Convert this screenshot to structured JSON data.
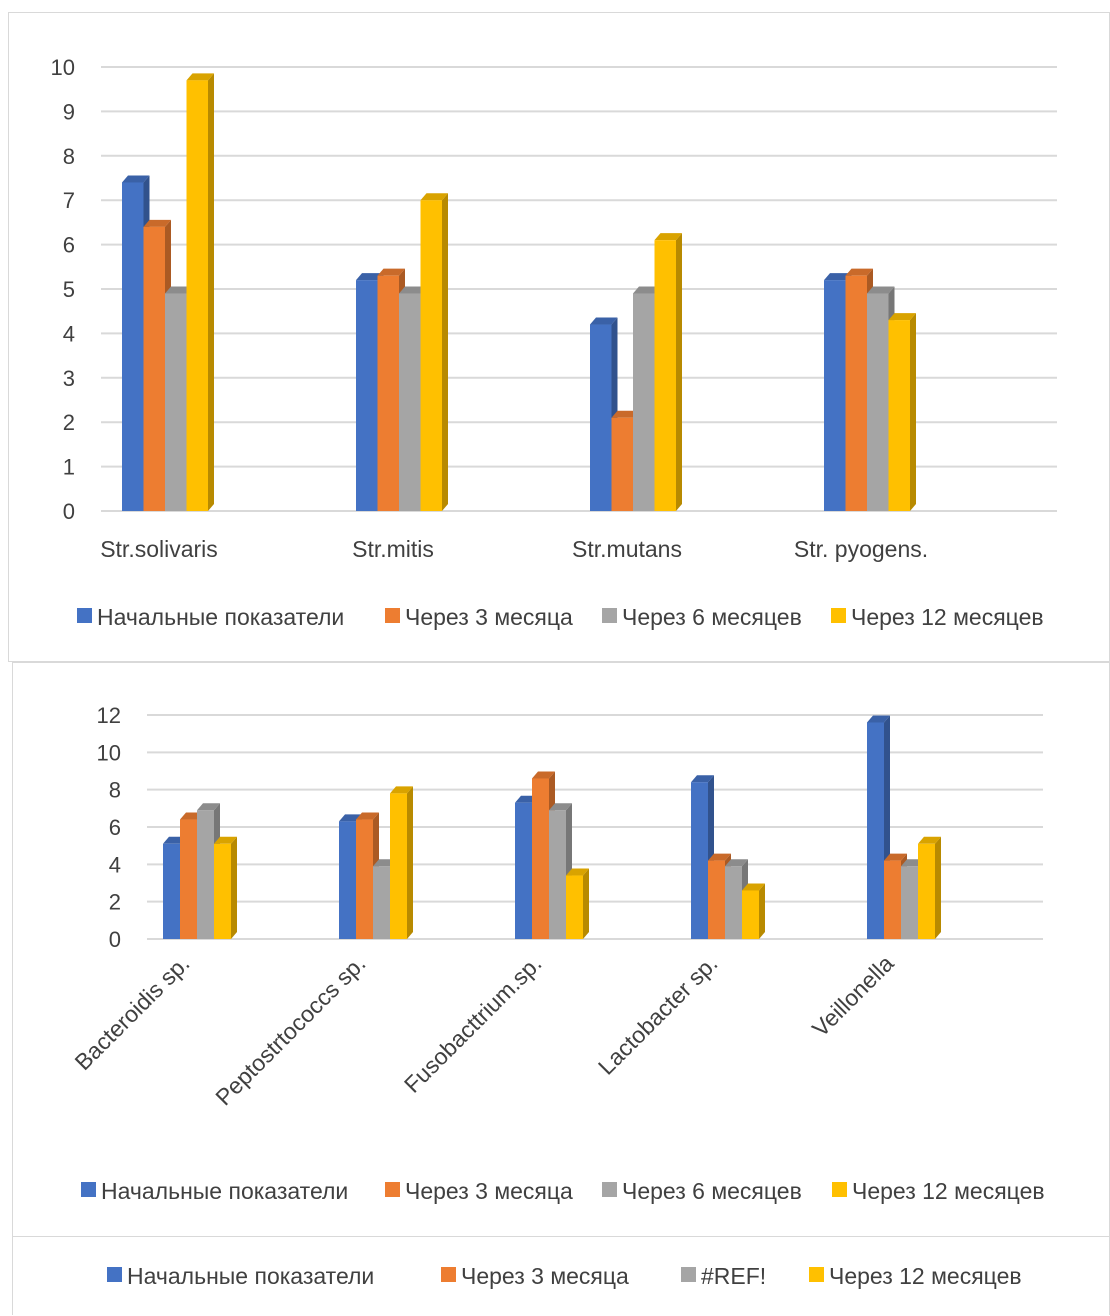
{
  "chart_data": [
    {
      "type": "bar",
      "style": "3d-clustered-column",
      "categories": [
        "Str.solivaris",
        "Str.mitis",
        "Str.mutans",
        "Str. pyogens."
      ],
      "ylim": [
        0,
        10
      ],
      "yticks": [
        "0",
        "1",
        "2",
        "3",
        "4",
        "5",
        "6",
        "7",
        "8",
        "9",
        "10"
      ],
      "grid": true,
      "legend_position": "bottom",
      "series": [
        {
          "name": "Начальные показатели",
          "color": "#4472C4",
          "values": [
            7.4,
            5.2,
            4.2,
            5.2
          ]
        },
        {
          "name": "Через 3 месяца",
          "color": "#ED7D31",
          "values": [
            6.4,
            5.3,
            2.1,
            5.3
          ]
        },
        {
          "name": "Через 6 месяцев",
          "color": "#A5A5A5",
          "values": [
            4.9,
            4.9,
            4.9,
            4.9
          ]
        },
        {
          "name": "Через 12 месяцев",
          "color": "#FFC000",
          "values": [
            9.7,
            7.0,
            6.1,
            4.3
          ]
        }
      ]
    },
    {
      "type": "bar",
      "style": "3d-clustered-column",
      "categories": [
        "Bacteroidis sp.",
        "Peptostrtococcs sp.",
        "Fusobacttrium.sp.",
        "Lactobacter sp.",
        "Veillonella"
      ],
      "ylim": [
        0,
        12
      ],
      "yticks": [
        "0",
        "2",
        "4",
        "6",
        "8",
        "10",
        "12"
      ],
      "grid": true,
      "legend_position": "bottom",
      "series": [
        {
          "name": "Начальные показатели",
          "color": "#4472C4",
          "values": [
            5.1,
            6.3,
            7.3,
            8.4,
            11.6
          ]
        },
        {
          "name": "Через 3 месяца",
          "color": "#ED7D31",
          "values": [
            6.4,
            6.4,
            8.6,
            4.2,
            4.2
          ]
        },
        {
          "name": "Через 6 месяцев",
          "color": "#A5A5A5",
          "values": [
            6.9,
            3.9,
            6.9,
            3.9,
            3.9
          ]
        },
        {
          "name": "Через 12 месяцев",
          "color": "#FFC000",
          "values": [
            5.1,
            7.8,
            3.4,
            2.6,
            5.1
          ]
        }
      ]
    }
  ],
  "legend3": {
    "items": [
      {
        "name": "Начальные показатели",
        "color": "#4472C4"
      },
      {
        "name": "Через 3 месяца",
        "color": "#ED7D31"
      },
      {
        "name": "#REF!",
        "color": "#A5A5A5"
      },
      {
        "name": "Через 12 месяцев",
        "color": "#FFC000"
      }
    ]
  }
}
